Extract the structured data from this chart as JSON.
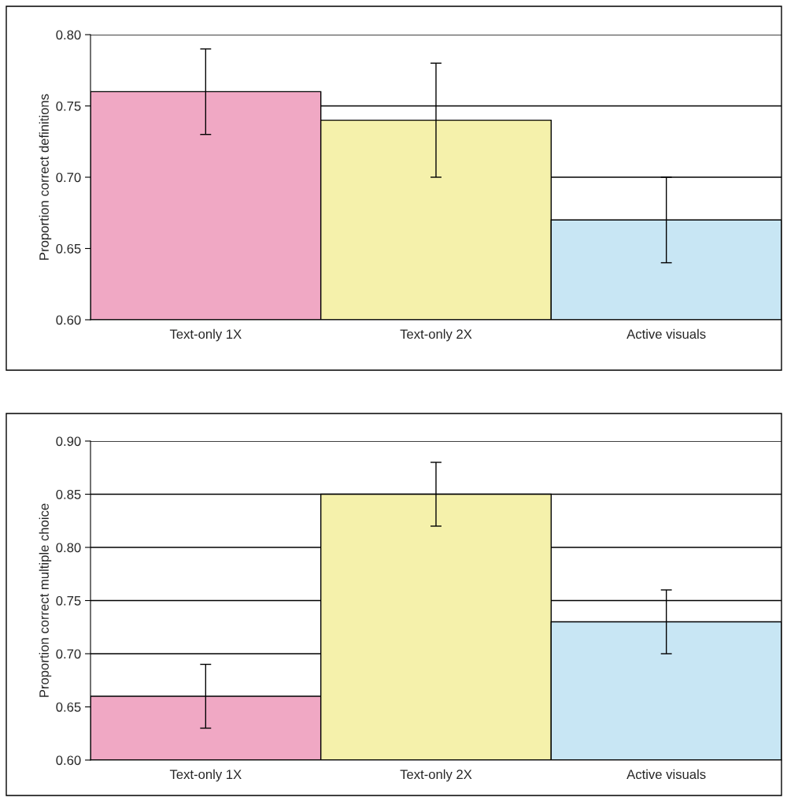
{
  "chart_data": [
    {
      "type": "bar",
      "ylabel": "Proportion correct definitions",
      "categories": [
        "Text-only 1X",
        "Text-only 2X",
        "Active visuals"
      ],
      "values": [
        0.76,
        0.74,
        0.67
      ],
      "colors": [
        "#f0a8c4",
        "#f5f1ab",
        "#c8e6f4"
      ],
      "errors": [
        0.03,
        0.04,
        0.03
      ],
      "ylim": [
        0.6,
        0.8
      ],
      "yticks": [
        {
          "value": 0.6,
          "label": "0.60"
        },
        {
          "value": 0.65,
          "label": "0.65"
        },
        {
          "value": 0.7,
          "label": "0.70"
        },
        {
          "value": 0.75,
          "label": "0.75"
        },
        {
          "value": 0.8,
          "label": "0.80"
        }
      ],
      "grid": "y"
    },
    {
      "type": "bar",
      "ylabel": "Proportion correct multiple choice",
      "categories": [
        "Text-only 1X",
        "Text-only 2X",
        "Active visuals"
      ],
      "values": [
        0.66,
        0.85,
        0.73
      ],
      "colors": [
        "#f0a8c4",
        "#f5f1ab",
        "#c8e6f4"
      ],
      "errors": [
        0.03,
        0.03,
        0.03
      ],
      "ylim": [
        0.6,
        0.9
      ],
      "yticks": [
        {
          "value": 0.6,
          "label": "0.60"
        },
        {
          "value": 0.65,
          "label": "0.65"
        },
        {
          "value": 0.7,
          "label": "0.70"
        },
        {
          "value": 0.75,
          "label": "0.75"
        },
        {
          "value": 0.8,
          "label": "0.80"
        },
        {
          "value": 0.85,
          "label": "0.85"
        },
        {
          "value": 0.9,
          "label": "0.90"
        }
      ],
      "grid": "y"
    }
  ]
}
